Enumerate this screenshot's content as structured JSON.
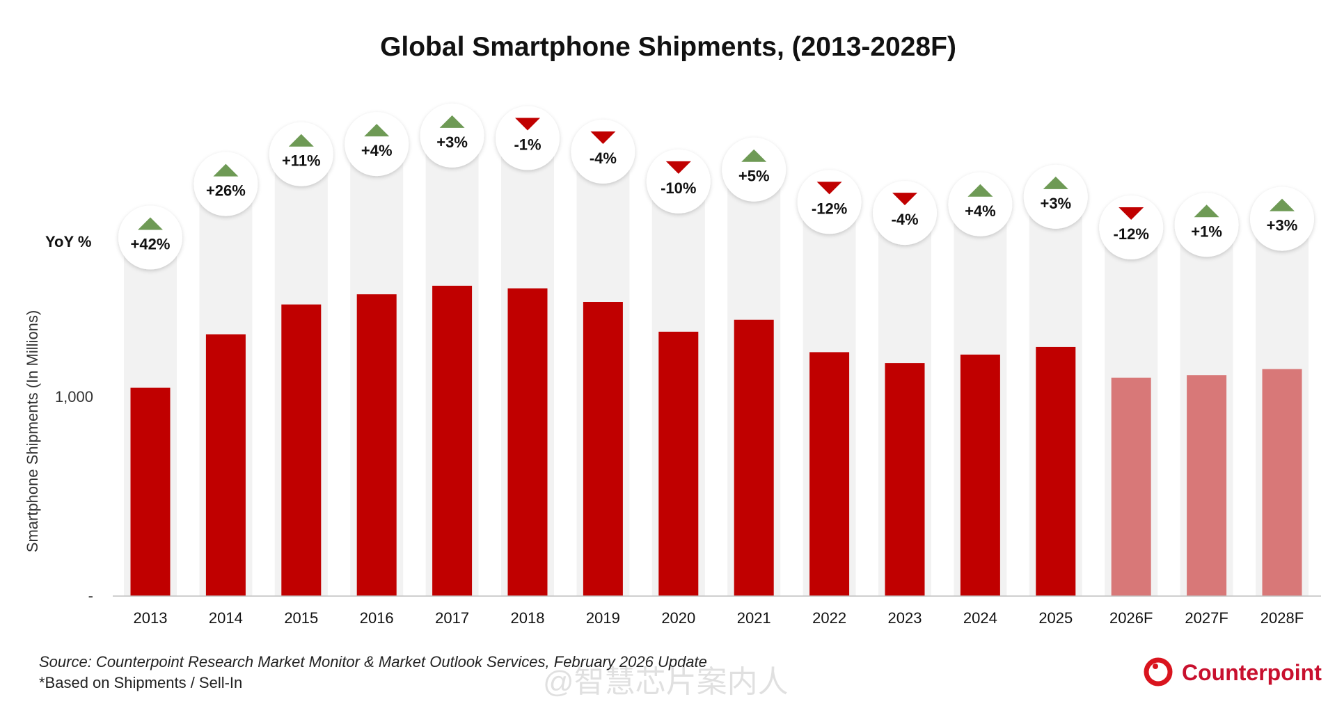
{
  "chart_data": {
    "type": "bar",
    "title": "Global Smartphone Shipments, (2013-2028F)",
    "ylabel": "Smartphone Shipments (In Millions)",
    "yoy_label": "YoY %",
    "ylim": [
      0,
      1700
    ],
    "yticks": [
      {
        "value": 0,
        "label": "-"
      },
      {
        "value": 1000,
        "label": "1,000"
      }
    ],
    "grid": false,
    "categories": [
      "2013",
      "2014",
      "2015",
      "2016",
      "2017",
      "2018",
      "2019",
      "2020",
      "2021",
      "2022",
      "2023",
      "2024",
      "2025",
      "2026F",
      "2027F",
      "2028F"
    ],
    "values": [
      1047,
      1316,
      1466,
      1517,
      1560,
      1547,
      1479,
      1329,
      1389,
      1226,
      1171,
      1214,
      1252,
      1098,
      1111,
      1141
    ],
    "forecast": [
      false,
      false,
      false,
      false,
      false,
      false,
      false,
      false,
      false,
      false,
      false,
      false,
      false,
      true,
      true,
      true
    ],
    "yoy": [
      "+42%",
      "+26%",
      "+11%",
      "+4%",
      "+3%",
      "-1%",
      "-4%",
      "-10%",
      "+5%",
      "-12%",
      "-4%",
      "+4%",
      "+3%",
      "-12%",
      "+1%",
      "+3%"
    ],
    "colors": {
      "actual": "#C00000",
      "forecast": "#D87878",
      "up": "#6E9A55",
      "down": "#C00000",
      "column_bg": "#F2F2F2"
    }
  },
  "footer": {
    "source": "Source: Counterpoint Research Market Monitor & Market Outlook Services, February 2026 Update",
    "note": "*Based on Shipments / Sell-In"
  },
  "logo": {
    "text": "Counterpoint",
    "color": "#C8102E"
  },
  "watermark": {
    "text": "@智慧芯片案内人"
  }
}
